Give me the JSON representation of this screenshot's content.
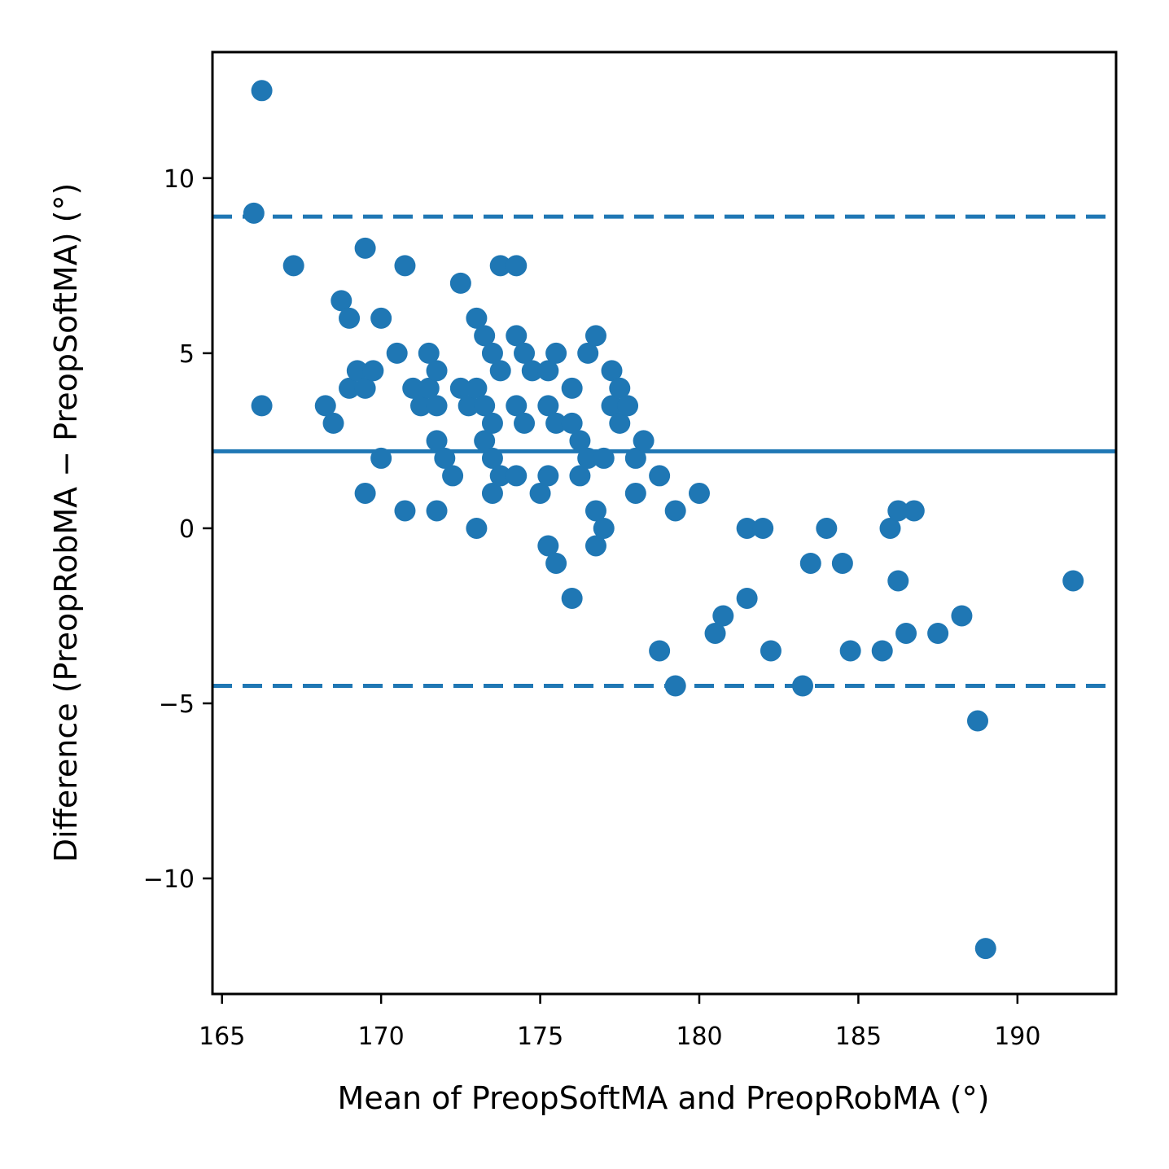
{
  "chart_data": {
    "type": "scatter",
    "title": "",
    "xlabel": "Mean of PreopSoftMA and PreopRobMA (°)",
    "ylabel": "Difference (PreopRobMA − PreopSoftMA) (°)",
    "xlim": [
      164.7,
      193.1
    ],
    "ylim": [
      -13.3,
      13.6
    ],
    "x_ticks": [
      165,
      170,
      175,
      180,
      185,
      190
    ],
    "y_ticks": [
      -10,
      -5,
      0,
      5,
      10
    ],
    "x_tick_labels": [
      "165",
      "170",
      "175",
      "180",
      "185",
      "190"
    ],
    "y_tick_labels": [
      "−10",
      "−5",
      "0",
      "5",
      "10"
    ],
    "grid": false,
    "color": "#1f77b4",
    "mean_difference": 2.2,
    "upper_limit_of_agreement": 8.9,
    "lower_limit_of_agreement": -4.5,
    "points": [
      {
        "x": 166.25,
        "y": 12.5
      },
      {
        "x": 166.0,
        "y": 9.0
      },
      {
        "x": 166.25,
        "y": 3.5
      },
      {
        "x": 167.25,
        "y": 7.5
      },
      {
        "x": 168.75,
        "y": 6.5
      },
      {
        "x": 169.0,
        "y": 6.0
      },
      {
        "x": 169.5,
        "y": 8.0
      },
      {
        "x": 168.25,
        "y": 3.5
      },
      {
        "x": 168.5,
        "y": 3.0
      },
      {
        "x": 169.0,
        "y": 4.0
      },
      {
        "x": 169.25,
        "y": 4.5
      },
      {
        "x": 169.5,
        "y": 4.0
      },
      {
        "x": 169.75,
        "y": 4.5
      },
      {
        "x": 170.0,
        "y": 6.0
      },
      {
        "x": 169.5,
        "y": 1.0
      },
      {
        "x": 170.0,
        "y": 2.0
      },
      {
        "x": 170.5,
        "y": 5.0
      },
      {
        "x": 170.75,
        "y": 7.5
      },
      {
        "x": 170.75,
        "y": 0.5
      },
      {
        "x": 171.0,
        "y": 4.0
      },
      {
        "x": 171.25,
        "y": 3.5
      },
      {
        "x": 171.5,
        "y": 5.0
      },
      {
        "x": 171.5,
        "y": 4.0
      },
      {
        "x": 171.75,
        "y": 4.5
      },
      {
        "x": 171.75,
        "y": 3.5
      },
      {
        "x": 171.75,
        "y": 2.5
      },
      {
        "x": 171.75,
        "y": 0.5
      },
      {
        "x": 172.0,
        "y": 2.0
      },
      {
        "x": 172.25,
        "y": 1.5
      },
      {
        "x": 172.5,
        "y": 7.0
      },
      {
        "x": 172.5,
        "y": 4.0
      },
      {
        "x": 172.75,
        "y": 3.5
      },
      {
        "x": 173.0,
        "y": 6.0
      },
      {
        "x": 173.0,
        "y": 4.0
      },
      {
        "x": 173.25,
        "y": 5.5
      },
      {
        "x": 173.25,
        "y": 3.5
      },
      {
        "x": 173.25,
        "y": 2.5
      },
      {
        "x": 173.0,
        "y": 0.0
      },
      {
        "x": 173.5,
        "y": 5.0
      },
      {
        "x": 173.5,
        "y": 3.0
      },
      {
        "x": 173.5,
        "y": 2.0
      },
      {
        "x": 173.5,
        "y": 1.0
      },
      {
        "x": 173.75,
        "y": 7.5
      },
      {
        "x": 173.75,
        "y": 4.5
      },
      {
        "x": 173.75,
        "y": 1.5
      },
      {
        "x": 174.25,
        "y": 7.5
      },
      {
        "x": 174.25,
        "y": 5.5
      },
      {
        "x": 174.25,
        "y": 3.5
      },
      {
        "x": 174.25,
        "y": 1.5
      },
      {
        "x": 174.5,
        "y": 5.0
      },
      {
        "x": 174.5,
        "y": 3.0
      },
      {
        "x": 174.75,
        "y": 4.5
      },
      {
        "x": 175.0,
        "y": 1.0
      },
      {
        "x": 175.25,
        "y": 4.5
      },
      {
        "x": 175.25,
        "y": 3.5
      },
      {
        "x": 175.25,
        "y": 1.5
      },
      {
        "x": 175.25,
        "y": -0.5
      },
      {
        "x": 175.5,
        "y": 5.0
      },
      {
        "x": 175.5,
        "y": 3.0
      },
      {
        "x": 175.5,
        "y": -1.0
      },
      {
        "x": 176.0,
        "y": 4.0
      },
      {
        "x": 176.0,
        "y": 3.0
      },
      {
        "x": 176.0,
        "y": -2.0
      },
      {
        "x": 176.25,
        "y": 2.5
      },
      {
        "x": 176.25,
        "y": 1.5
      },
      {
        "x": 176.5,
        "y": 5.0
      },
      {
        "x": 176.5,
        "y": 2.0
      },
      {
        "x": 176.75,
        "y": 5.5
      },
      {
        "x": 176.75,
        "y": 0.5
      },
      {
        "x": 176.75,
        "y": -0.5
      },
      {
        "x": 177.0,
        "y": 2.0
      },
      {
        "x": 177.0,
        "y": 0.0
      },
      {
        "x": 177.25,
        "y": 4.5
      },
      {
        "x": 177.25,
        "y": 3.5
      },
      {
        "x": 177.5,
        "y": 4.0
      },
      {
        "x": 177.5,
        "y": 3.0
      },
      {
        "x": 177.75,
        "y": 3.5
      },
      {
        "x": 178.0,
        "y": 2.0
      },
      {
        "x": 178.0,
        "y": 1.0
      },
      {
        "x": 178.25,
        "y": 2.5
      },
      {
        "x": 178.75,
        "y": 1.5
      },
      {
        "x": 178.75,
        "y": -3.5
      },
      {
        "x": 179.25,
        "y": 0.5
      },
      {
        "x": 179.25,
        "y": -4.5
      },
      {
        "x": 180.0,
        "y": 1.0
      },
      {
        "x": 180.5,
        "y": -3.0
      },
      {
        "x": 180.75,
        "y": -2.5
      },
      {
        "x": 181.5,
        "y": 0.0
      },
      {
        "x": 181.5,
        "y": -2.0
      },
      {
        "x": 182.0,
        "y": 0.0
      },
      {
        "x": 182.25,
        "y": -3.5
      },
      {
        "x": 183.25,
        "y": -4.5
      },
      {
        "x": 183.5,
        "y": -1.0
      },
      {
        "x": 184.0,
        "y": 0.0
      },
      {
        "x": 184.5,
        "y": -1.0
      },
      {
        "x": 184.75,
        "y": -3.5
      },
      {
        "x": 185.75,
        "y": -3.5
      },
      {
        "x": 186.0,
        "y": 0.0
      },
      {
        "x": 186.25,
        "y": 0.5
      },
      {
        "x": 186.25,
        "y": -1.5
      },
      {
        "x": 186.5,
        "y": -3.0
      },
      {
        "x": 186.75,
        "y": 0.5
      },
      {
        "x": 187.5,
        "y": -3.0
      },
      {
        "x": 188.25,
        "y": -2.5
      },
      {
        "x": 188.75,
        "y": -5.5
      },
      {
        "x": 189.0,
        "y": -12.0
      },
      {
        "x": 191.75,
        "y": -1.5
      }
    ]
  }
}
